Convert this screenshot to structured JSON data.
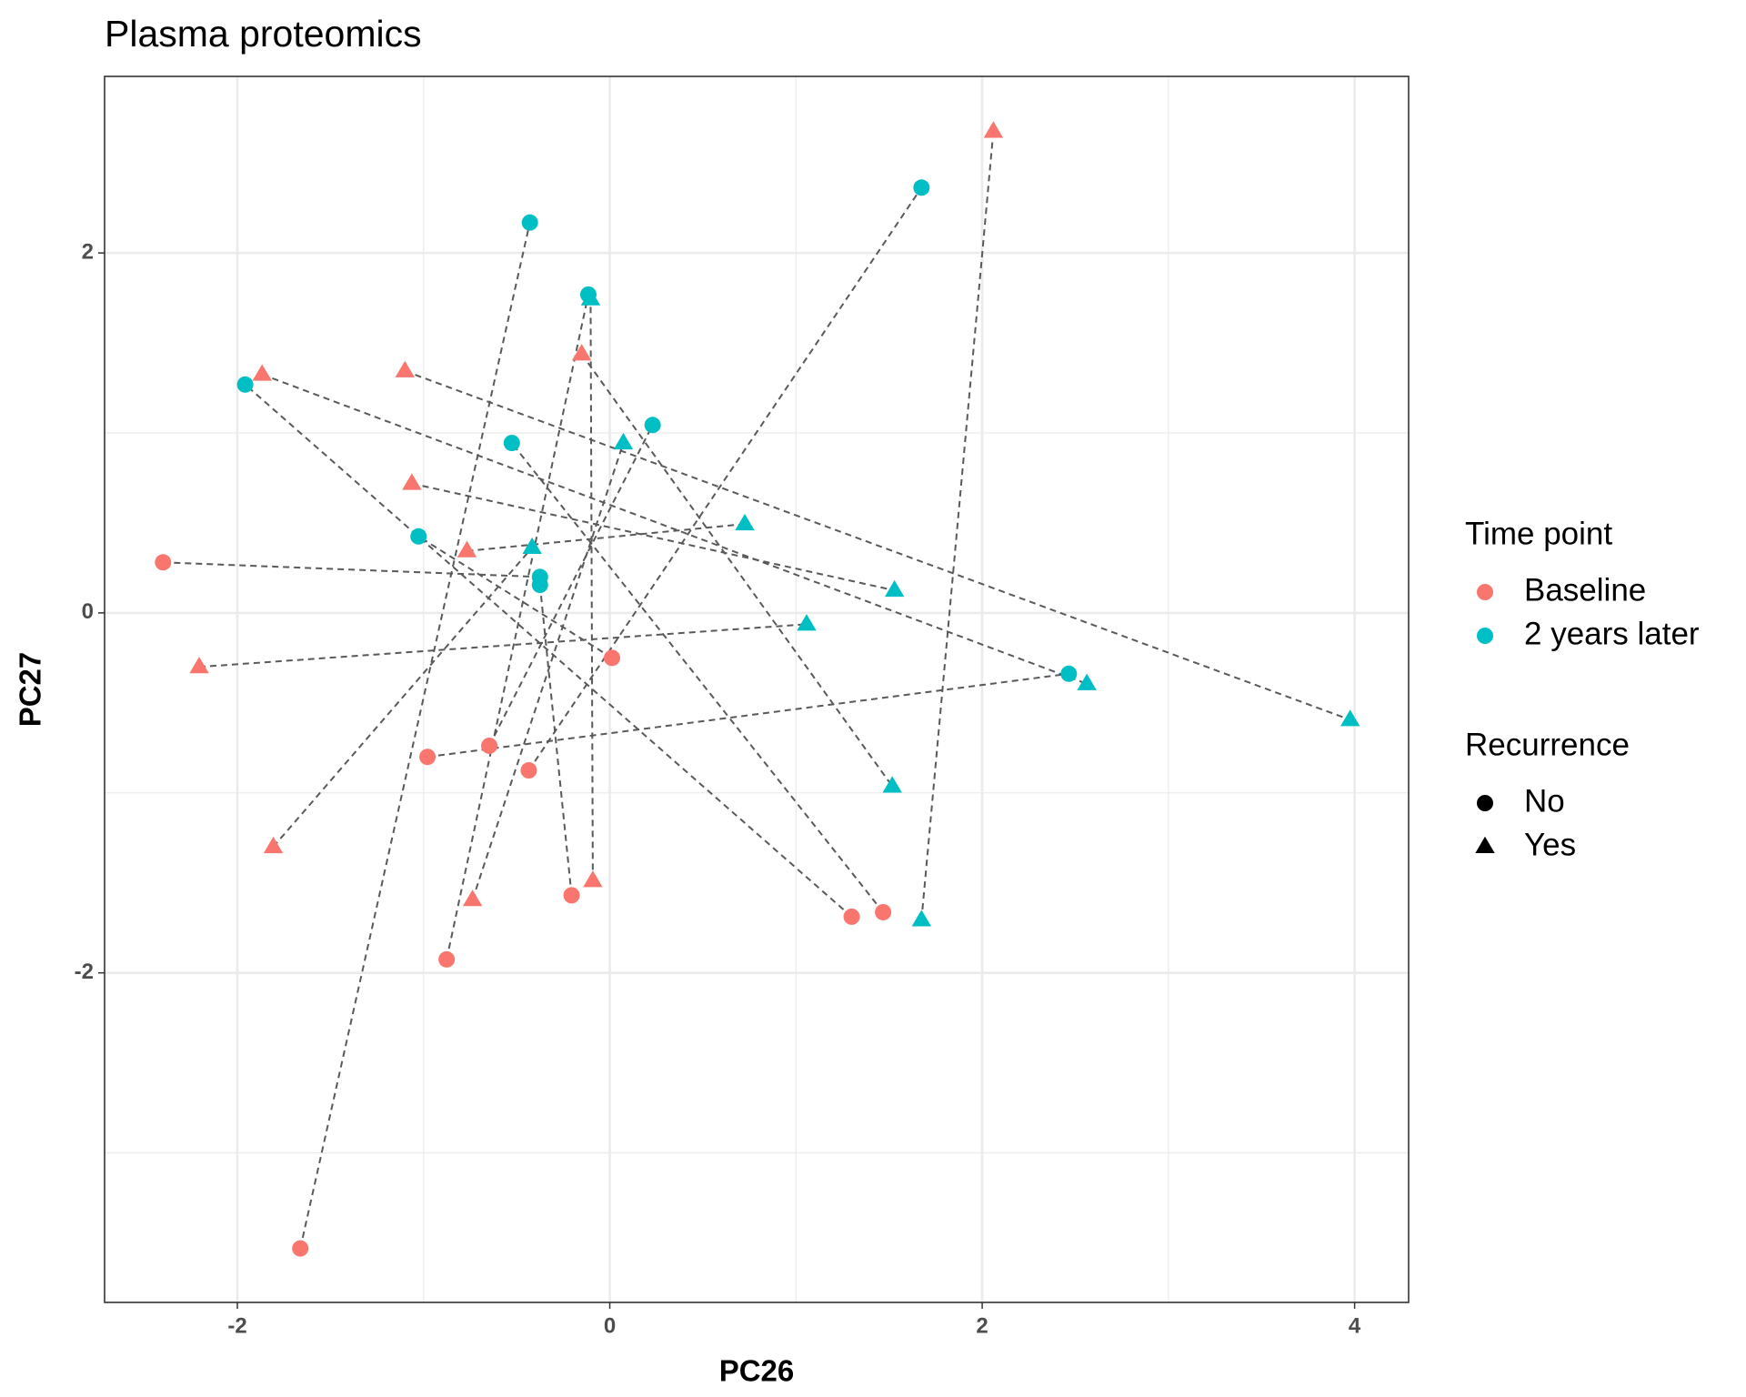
{
  "chart_data": {
    "type": "paired-scatter",
    "title": "Plasma proteomics",
    "x_label": "PC26",
    "y_label": "PC27",
    "xlim": [
      -2.713,
      4.29
    ],
    "ylim": [
      -3.831,
      2.981
    ],
    "xticks": [
      -2,
      0,
      2,
      4
    ],
    "yticks": [
      -2,
      0,
      2
    ],
    "x_minor_grid": [
      -1,
      1,
      3
    ],
    "y_minor_grid": [
      -3,
      -1,
      1
    ],
    "grid": true,
    "paired": true,
    "line_color": "#595959",
    "color_legend_title": "Time point",
    "shape_legend": {
      "title": "Recurrence",
      "labels": [
        "No",
        "Yes"
      ],
      "shapes": [
        "circle",
        "triangle"
      ]
    },
    "series": [
      {
        "name": "Baseline",
        "color": "#F8766D",
        "x": [
          -0.435,
          -1.662,
          -0.876,
          1.299,
          1.468,
          -0.647,
          0.012,
          -2.399,
          -0.205,
          -0.979,
          2.06,
          -1.867,
          -1.1,
          -0.151,
          -1.063,
          -0.767,
          -2.205,
          -1.807,
          -0.737,
          -0.091
        ],
        "y": [
          -0.875,
          -3.531,
          -1.925,
          -1.688,
          -1.663,
          -0.738,
          -0.25,
          0.281,
          -1.569,
          -0.8,
          2.675,
          1.325,
          1.344,
          1.438,
          0.719,
          0.344,
          -0.3,
          -1.3,
          -1.594,
          -1.488
        ],
        "recurrence": [
          "No",
          "No",
          "No",
          "No",
          "No",
          "No",
          "No",
          "No",
          "No",
          "No",
          "Yes",
          "Yes",
          "Yes",
          "Yes",
          "Yes",
          "Yes",
          "Yes",
          "Yes",
          "Yes",
          "Yes"
        ]
      },
      {
        "name": "2 years later",
        "color": "#00BFC4",
        "x": [
          1.674,
          -0.429,
          -0.115,
          -1.958,
          -0.526,
          0.23,
          -1.027,
          -0.375,
          -0.375,
          2.465,
          1.674,
          2.562,
          3.976,
          1.517,
          1.529,
          0.725,
          1.057,
          -0.417,
          0.073,
          -0.103
        ],
        "y": [
          2.363,
          2.169,
          1.769,
          1.269,
          0.944,
          1.044,
          0.425,
          0.2,
          0.156,
          -0.338,
          -1.706,
          -0.394,
          -0.594,
          -0.963,
          0.125,
          0.494,
          -0.063,
          0.363,
          0.944,
          1.744
        ],
        "recurrence": [
          "No",
          "No",
          "No",
          "No",
          "No",
          "No",
          "No",
          "No",
          "No",
          "No",
          "Yes",
          "Yes",
          "Yes",
          "Yes",
          "Yes",
          "Yes",
          "Yes",
          "Yes",
          "Yes",
          "Yes"
        ]
      }
    ]
  }
}
